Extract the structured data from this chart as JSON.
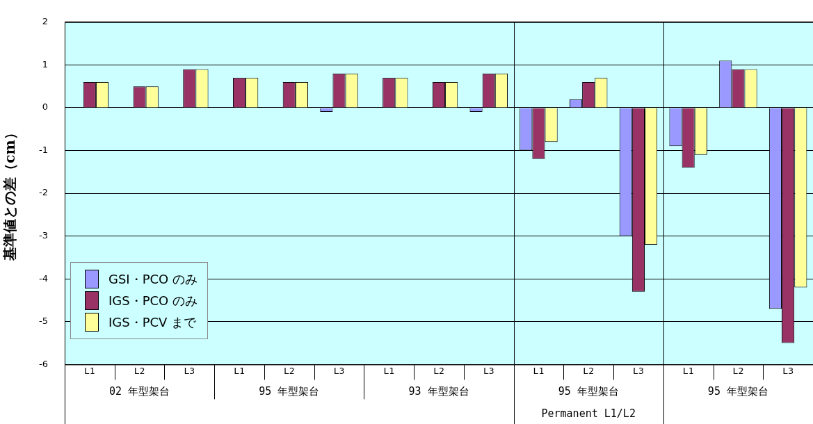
{
  "chart_data": {
    "type": "bar",
    "ylabel": "基準値との差（cm）",
    "categories": [
      "L1",
      "L2",
      "L3",
      "L1",
      "L2",
      "L3",
      "L1",
      "L2",
      "L3",
      "L1",
      "L2",
      "L3",
      "L1",
      "L2",
      "L3"
    ],
    "series": [
      {
        "name": "GSI・PCO のみ",
        "color": "#9999ff",
        "values": [
          0,
          0,
          0,
          0,
          0,
          -0.1,
          0,
          0,
          -0.1,
          -1.0,
          0.2,
          -3.0,
          -0.9,
          1.1,
          -4.7
        ]
      },
      {
        "name": "IGS・PCO のみ",
        "color": "#993366",
        "values": [
          0.6,
          0.5,
          0.9,
          0.7,
          0.6,
          0.8,
          0.7,
          0.6,
          0.8,
          -1.2,
          0.6,
          -4.3,
          -1.4,
          0.9,
          -5.5
        ]
      },
      {
        "name": "IGS・PCV まで",
        "color": "#ffff99",
        "values": [
          0.6,
          0.5,
          0.9,
          0.7,
          0.6,
          0.8,
          0.7,
          0.6,
          0.8,
          -0.8,
          0.7,
          -3.2,
          -1.1,
          0.9,
          -4.2
        ]
      }
    ],
    "annotations": [
      "02 年型架台",
      "95 年型架台",
      "93 年型架台",
      "95 年型架台",
      "95 年型架台",
      "Permanent L1/L2"
    ],
    "ylim": [
      -6,
      2
    ],
    "yticks": [
      -6,
      -5,
      -4,
      -3,
      -2,
      -1,
      0,
      1,
      2
    ],
    "grid": "y",
    "legend": "bottom left"
  }
}
